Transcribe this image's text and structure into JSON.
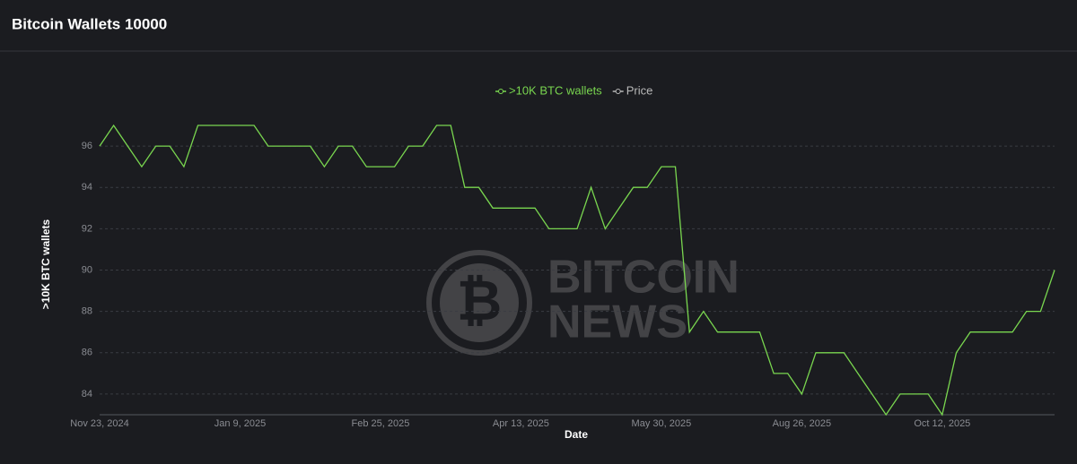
{
  "header": {
    "title": "Bitcoin Wallets 10000"
  },
  "watermark": [
    "BITCOIN",
    "NEWS"
  ],
  "chart_data": {
    "type": "line",
    "x_label": "Date",
    "y_label": ">10K BTC wallets",
    "categories": [
      "Nov 23, 2024",
      null,
      null,
      null,
      null,
      null,
      null,
      null,
      null,
      null,
      "Jan 9, 2025",
      null,
      null,
      null,
      null,
      null,
      null,
      null,
      null,
      null,
      "Feb 25, 2025",
      null,
      null,
      null,
      null,
      null,
      null,
      null,
      null,
      null,
      "Apr 13, 2025",
      null,
      null,
      null,
      null,
      null,
      null,
      null,
      null,
      null,
      "May 30, 2025",
      null,
      null,
      null,
      null,
      null,
      null,
      null,
      null,
      null,
      "Aug 26, 2025",
      null,
      null,
      null,
      null,
      null,
      null,
      null,
      null,
      null,
      "Oct 12, 2025",
      null,
      null,
      null,
      null,
      null,
      null,
      null,
      null
    ],
    "series": [
      {
        "name": ">10K BTC wallets",
        "color": "#79d64f",
        "values": [
          96,
          97,
          96,
          95,
          96,
          96,
          95,
          97,
          97,
          97,
          97,
          97,
          96,
          96,
          96,
          96,
          95,
          96,
          96,
          95,
          95,
          95,
          96,
          96,
          97,
          97,
          94,
          94,
          93,
          93,
          93,
          93,
          92,
          92,
          92,
          94,
          92,
          93,
          94,
          94,
          95,
          95,
          87,
          88,
          87,
          87,
          87,
          87,
          85,
          85,
          84,
          86,
          86,
          86,
          85,
          84,
          83,
          84,
          84,
          84,
          83,
          86,
          87,
          87,
          87,
          87,
          88,
          88,
          90
        ]
      },
      {
        "name": "Price",
        "color": "#b8b8b8",
        "values": [
          null,
          null,
          null,
          null,
          null,
          null,
          null,
          null,
          null,
          null,
          null,
          null,
          null,
          null,
          null,
          null,
          null,
          null,
          null,
          null,
          null,
          null,
          null,
          null,
          null,
          null,
          null,
          null,
          null,
          null,
          null,
          null,
          null,
          null,
          null,
          null,
          null,
          null,
          null,
          null,
          null,
          null,
          null,
          null,
          null,
          null,
          null,
          null,
          null,
          null,
          null,
          null,
          null,
          null,
          null,
          null,
          null,
          null,
          null,
          null,
          null,
          null,
          null,
          null,
          null,
          null,
          null,
          null,
          null
        ]
      }
    ],
    "ylim": [
      83,
      97
    ],
    "yticks": [
      84,
      86,
      88,
      90,
      92,
      94,
      96
    ],
    "grid": true
  }
}
